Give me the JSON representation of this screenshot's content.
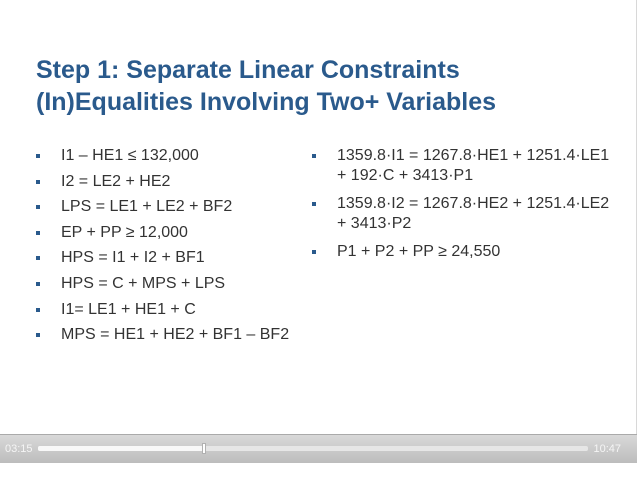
{
  "slide": {
    "title_lines": [
      "Step 1: Separate Linear Constraints",
      "(In)Equalities Involving Two+ Variables"
    ],
    "left_items": [
      "I1 – HE1 ≤ 132,000",
      "I2 = LE2 + HE2",
      "LPS = LE1 + LE2 + BF2",
      "EP + PP ≥ 12,000",
      "HPS = I1 + I2 + BF1",
      "HPS = C + MPS + LPS",
      "I1= LE1 + HE1 + C",
      "MPS = HE1 + HE2 + BF1 – BF2"
    ],
    "right_items": [
      "1359.8·I1 = 1267.8·HE1 + 1251.4·LE1 + 192·C + 3413·P1",
      "1359.8·I2 = 1267.8·HE2 + 1251.4·LE2 + 3413·P2",
      "P1 + P2 + PP ≥ 24,550"
    ],
    "colors": {
      "title": "#2a5a8c",
      "bullet": "#2a5a8c",
      "text": "#333333"
    }
  },
  "player": {
    "current_time": "03:15",
    "total_time": "10:47",
    "progress_fraction": 0.301
  }
}
